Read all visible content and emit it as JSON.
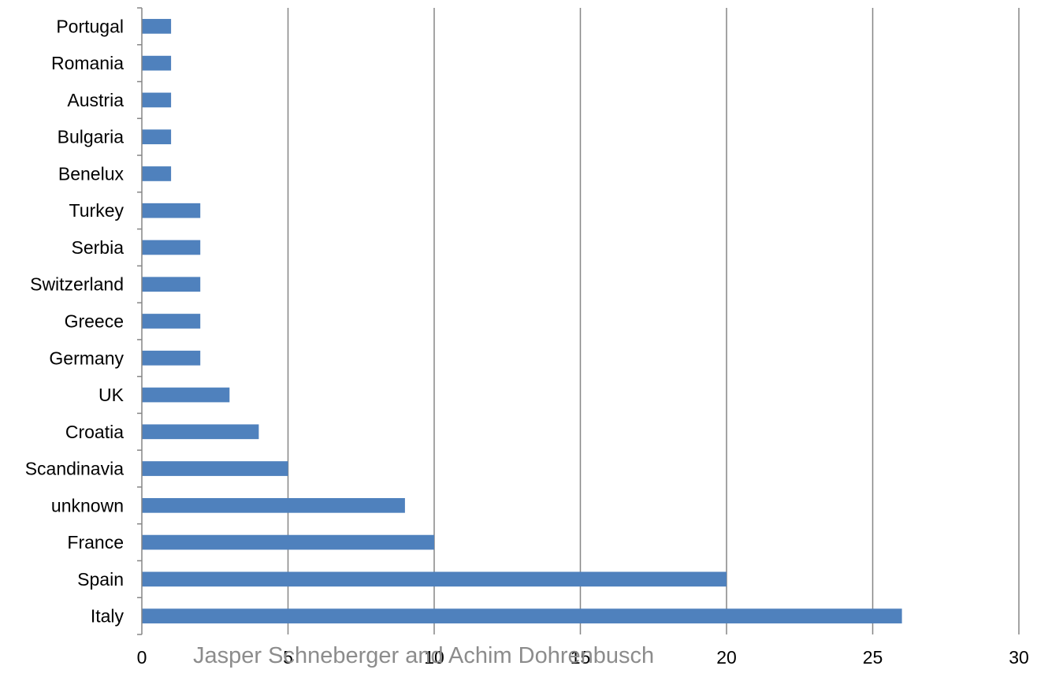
{
  "chart_data": {
    "type": "bar",
    "orientation": "horizontal",
    "categories": [
      "Italy",
      "Spain",
      "France",
      "unknown",
      "Scandinavia",
      "Croatia",
      "UK",
      "Germany",
      "Greece",
      "Switzerland",
      "Serbia",
      "Turkey",
      "Benelux",
      "Bulgaria",
      "Austria",
      "Romania",
      "Portugal"
    ],
    "values": [
      26,
      20,
      10,
      9,
      5,
      4,
      3,
      2,
      2,
      2,
      2,
      2,
      1,
      1,
      1,
      1,
      1
    ],
    "xlim": [
      0,
      30
    ],
    "xticks": [
      0,
      5,
      10,
      15,
      20,
      25,
      30
    ],
    "grid": "vertical",
    "title": "",
    "xlabel": "",
    "ylabel": "",
    "bar_color": "#4f81bd",
    "grid_color": "#868686"
  },
  "credit": "Jasper Schneberger and Achim Dohrenbusch"
}
